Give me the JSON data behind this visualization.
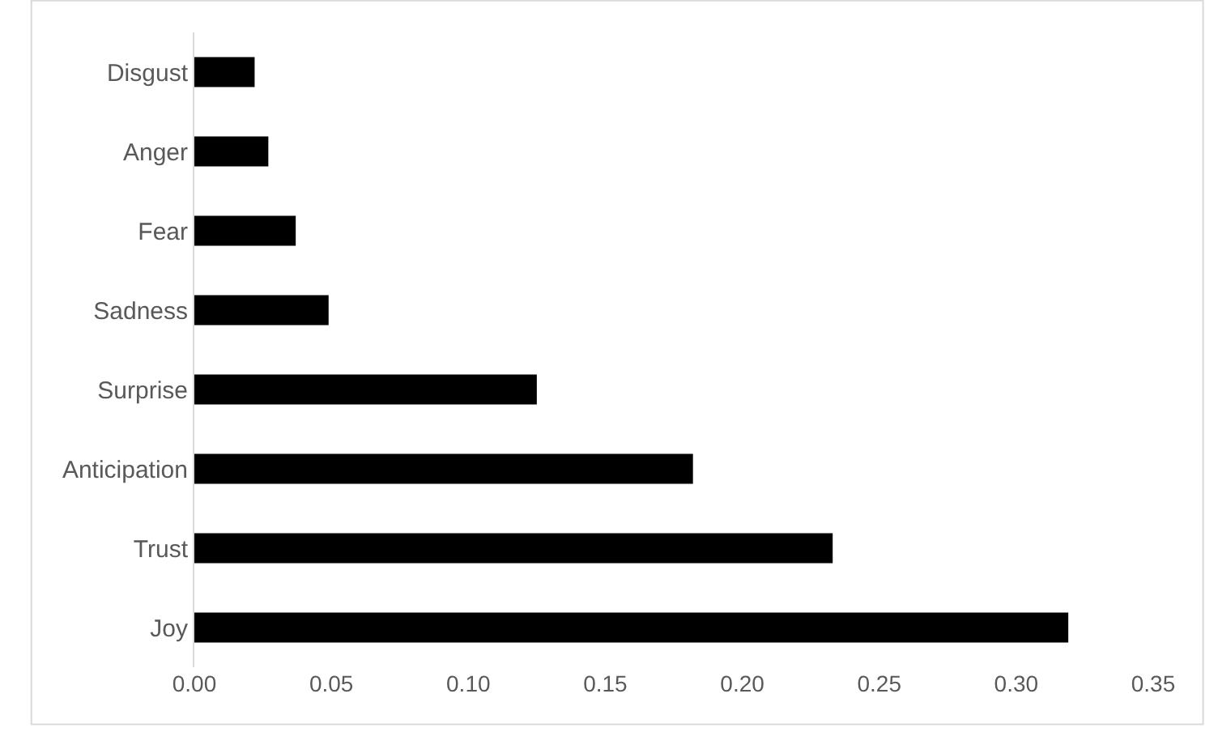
{
  "chart_data": {
    "type": "bar",
    "orientation": "horizontal",
    "categories": [
      "Disgust",
      "Anger",
      "Fear",
      "Sadness",
      "Surprise",
      "Anticipation",
      "Trust",
      "Joy"
    ],
    "values": [
      0.022,
      0.027,
      0.037,
      0.049,
      0.125,
      0.182,
      0.233,
      0.319
    ],
    "color": "#000000",
    "xlim": [
      0,
      0.35
    ],
    "xticks": [
      {
        "value": 0,
        "label": "0.00"
      },
      {
        "value": 0.05,
        "label": "0.05"
      },
      {
        "value": 0.1,
        "label": "0.10"
      },
      {
        "value": 0.15,
        "label": "0.15"
      },
      {
        "value": 0.2,
        "label": "0.20"
      },
      {
        "value": 0.25,
        "label": "0.25"
      },
      {
        "value": 0.3,
        "label": "0.30"
      },
      {
        "value": 0.35,
        "label": "0.35"
      }
    ],
    "grid": false
  }
}
